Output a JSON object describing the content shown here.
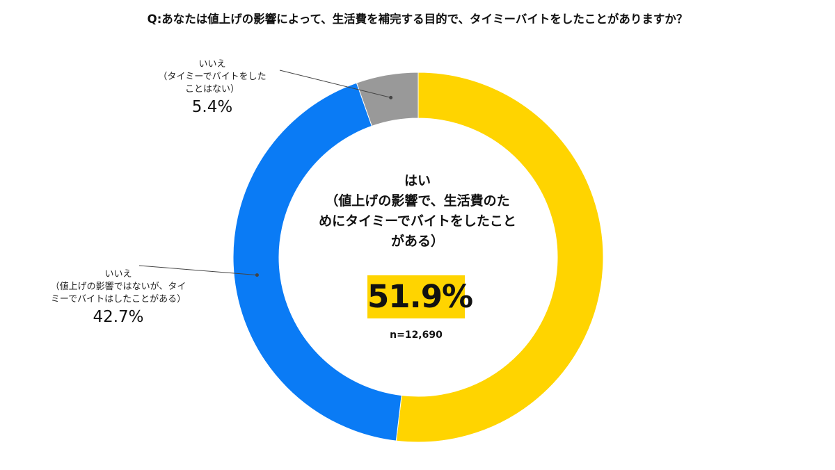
{
  "colors": {
    "yes": "#FFD400",
    "no_did": "#0A7BF5",
    "no_never": "#999999",
    "highlight": "#FFD400",
    "leader_line": "#444444"
  },
  "chart_data": {
    "type": "pie",
    "variant": "donut",
    "title": "Q:あなたは値上げの影響によって、生活費を補完する目的で、タイミーバイトをしたことがありますか？",
    "sample_size": "n=12,690",
    "start": "12 o'clock",
    "direction": "clockwise",
    "slices": [
      {
        "key": "yes",
        "value": 51.9,
        "value_label": "51.9%",
        "label_lines": [
          "はい",
          "（値上げの影響で、生活費のた",
          "めにタイミーでバイトをしたこと",
          "がある）"
        ]
      },
      {
        "key": "no_did",
        "value": 42.7,
        "value_label": "42.7%",
        "label_lines": [
          "いいえ",
          "（値上げの影響ではないが、タイ",
          "ミーでバイトはしたことがある）"
        ]
      },
      {
        "key": "no_never",
        "value": 5.4,
        "value_label": "5.4%",
        "label_lines": [
          "いいえ",
          "（タイミーでバイトをした",
          "ことはない）"
        ]
      }
    ]
  }
}
